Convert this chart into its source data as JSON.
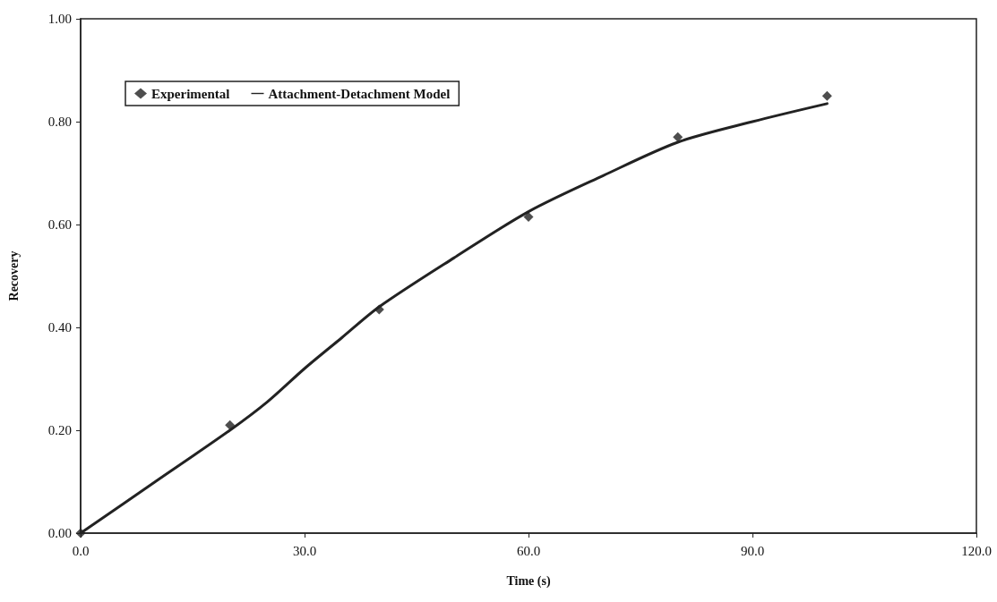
{
  "chart_data": {
    "type": "scatter",
    "xlabel": "Time (s)",
    "ylabel": "Recovery",
    "xlim": [
      0,
      120
    ],
    "xticks": [
      {
        "value": 0,
        "label": "0.0"
      },
      {
        "value": 30,
        "label": "30.0"
      },
      {
        "value": 60,
        "label": "60.0"
      },
      {
        "value": 90,
        "label": "90.0"
      },
      {
        "value": 120,
        "label": "120.0"
      }
    ],
    "ylim": [
      0,
      1
    ],
    "yticks": [
      {
        "value": 0,
        "label": "0.00"
      },
      {
        "value": 0.2,
        "label": "0.20"
      },
      {
        "value": 0.4,
        "label": "0.40"
      },
      {
        "value": 0.6,
        "label": "0.60"
      },
      {
        "value": 0.8,
        "label": "0.80"
      },
      {
        "value": 1,
        "label": "1.00"
      }
    ],
    "grid": false,
    "legend": "top left",
    "series": [
      {
        "name": "Experimental",
        "marker": "diamond",
        "color": "#222222",
        "x": [
          0,
          20,
          40,
          60,
          80,
          100
        ],
        "values": [
          0,
          0.21,
          0.435,
          0.615,
          0.77,
          0.85
        ]
      },
      {
        "name": "Attachment-Detachment Model",
        "type": "line",
        "marker": "none",
        "line_style": "solid",
        "color": "#222222",
        "x": [
          0,
          10,
          20,
          25,
          30,
          35,
          40,
          50,
          60,
          70,
          80,
          90,
          100
        ],
        "values": [
          0,
          0.1,
          0.2,
          0.255,
          0.32,
          0.38,
          0.44,
          0.535,
          0.625,
          0.695,
          0.76,
          0.8,
          0.835
        ]
      }
    ]
  }
}
